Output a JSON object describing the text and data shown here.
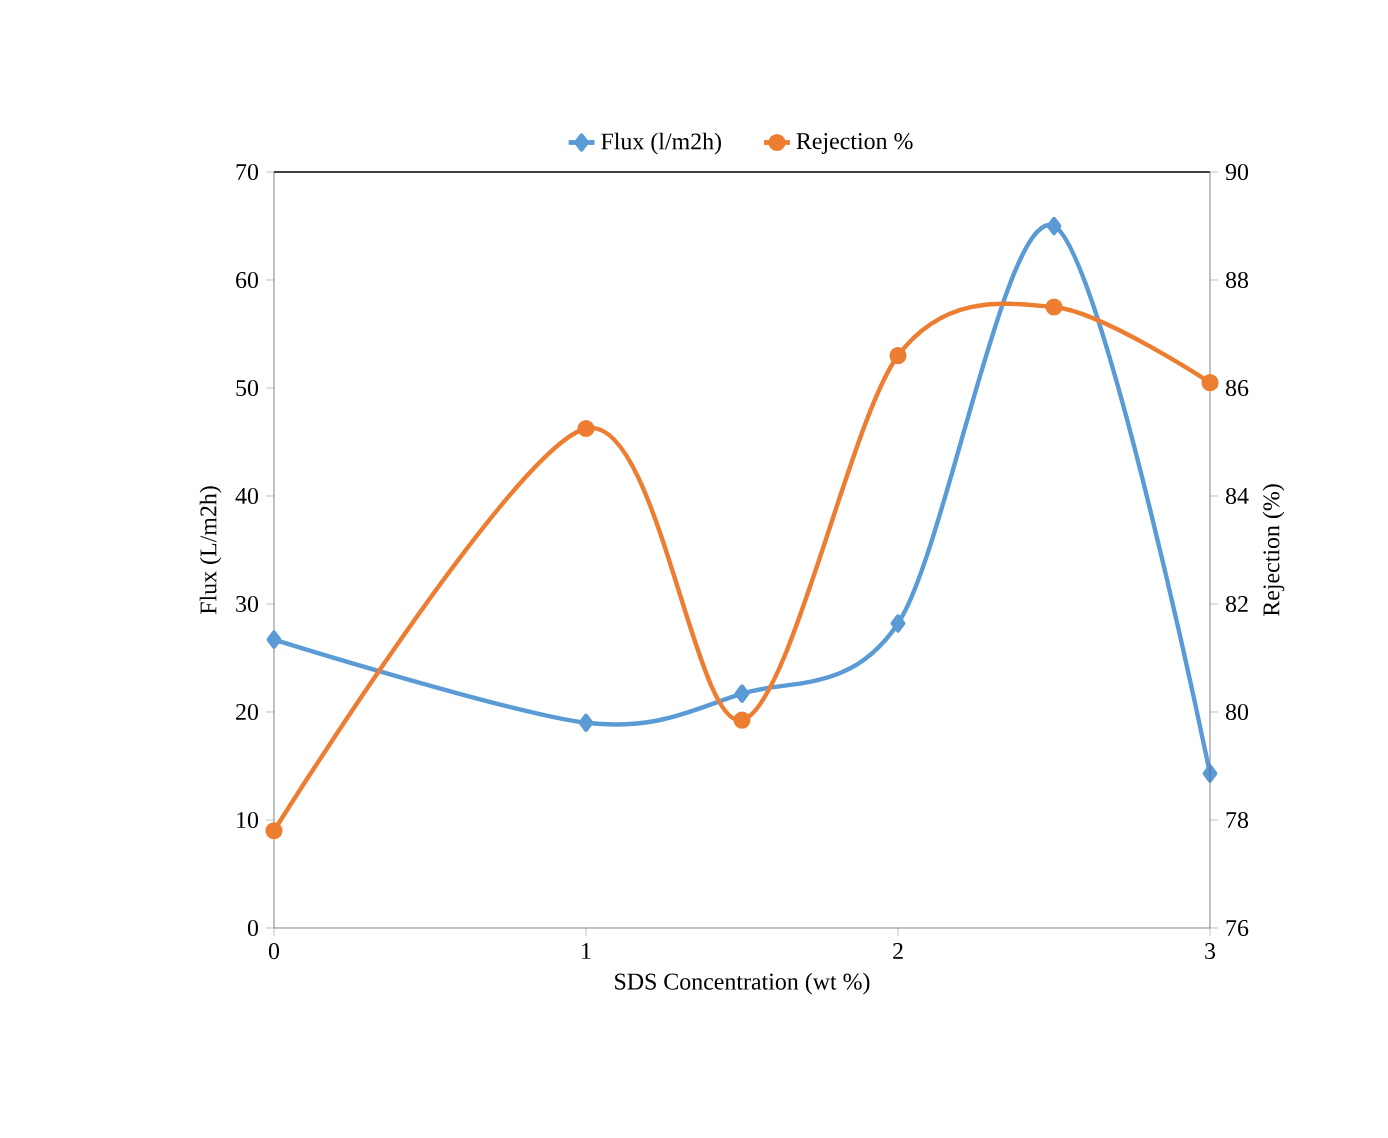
{
  "chart_data": {
    "type": "line",
    "xlabel": "SDS Concentration (wt %)",
    "ylabel": "Flux (L/m2h)",
    "y2label": "Rejection (%)",
    "x": [
      0,
      1,
      1.5,
      2,
      2.5,
      3
    ],
    "series": [
      {
        "name": "Flux (l/m2h)",
        "color": "#5b9bd5",
        "marker": "diamond",
        "values": [
          26.7,
          19.0,
          21.7,
          28.2,
          65.0,
          14.3
        ]
      },
      {
        "name": "Rejection %",
        "color": "#ed7d31",
        "marker": "circle",
        "axis": "y2",
        "values": [
          77.8,
          85.25,
          79.85,
          86.6,
          87.5,
          86.1
        ]
      }
    ],
    "xlim": [
      0,
      3
    ],
    "xticks": [
      0,
      1,
      2,
      3
    ],
    "ylim": [
      0,
      70
    ],
    "yticks": [
      0,
      10,
      20,
      30,
      40,
      50,
      60,
      70
    ],
    "y2lim": [
      76,
      90
    ],
    "y2ticks": [
      76,
      78,
      80,
      82,
      84,
      86,
      88,
      90
    ],
    "legend": "top"
  }
}
